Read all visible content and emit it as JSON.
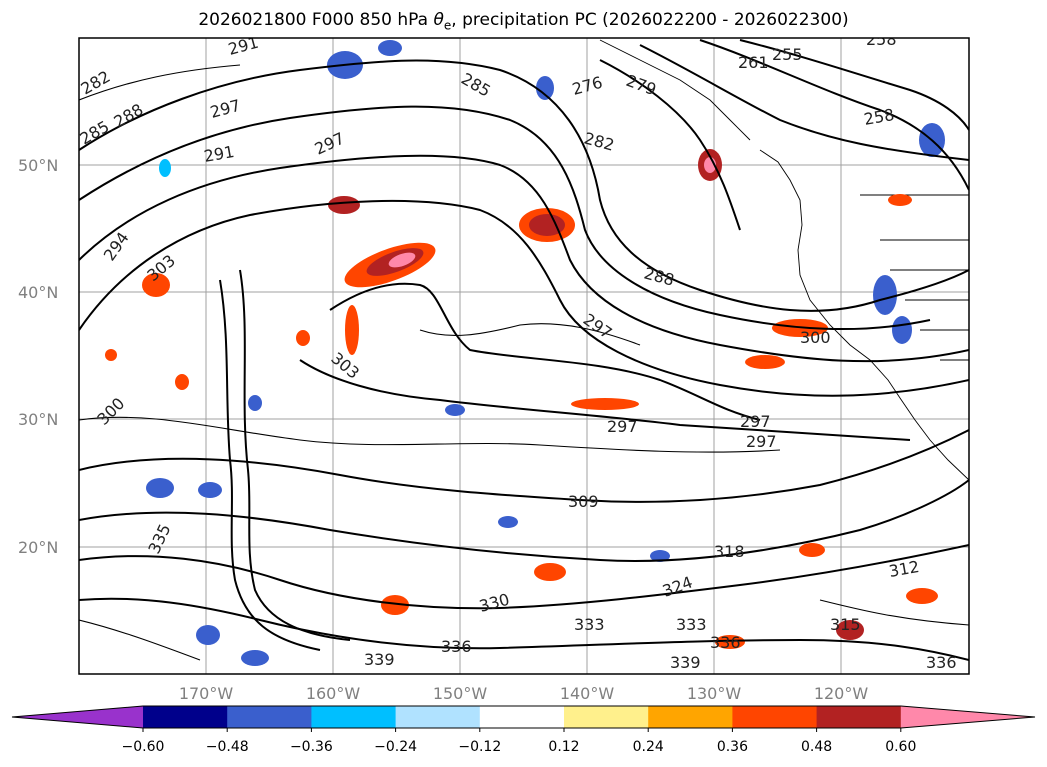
{
  "title": {
    "prefix": "2026021800 F000 850 hPa ",
    "theta": "θ",
    "sub": "e",
    "suffix": ", precipitation PC (2026022200 - 2026022300)"
  },
  "map": {
    "lat_labels": [
      "50°N",
      "40°N",
      "30°N",
      "20°N"
    ],
    "lon_labels": [
      "170°W",
      "160°W",
      "150°W",
      "140°W",
      "130°W",
      "120°W"
    ],
    "contour_labels": [
      "282",
      "288",
      "285",
      "291",
      "297",
      "297",
      "291",
      "294",
      "303",
      "300",
      "303",
      "297",
      "288",
      "285",
      "282",
      "276",
      "279",
      "261",
      "255",
      "258",
      "258",
      "300",
      "297",
      "297",
      "297",
      "309",
      "318",
      "312",
      "330",
      "333",
      "333",
      "336",
      "339",
      "336",
      "315",
      "324",
      "335",
      "339",
      "336"
    ]
  },
  "colorbar": {
    "colors": [
      "#9932cc",
      "#00008b",
      "#3a5fcd",
      "#00bfff",
      "#b0e2ff",
      "#ffffff",
      "#fff08c",
      "#ffa500",
      "#ff4500",
      "#b22222",
      "#ff88aa"
    ],
    "ticks": [
      "−0.60",
      "−0.48",
      "−0.36",
      "−0.24",
      "−0.12",
      "0.12",
      "0.24",
      "0.36",
      "0.48",
      "0.60"
    ]
  }
}
